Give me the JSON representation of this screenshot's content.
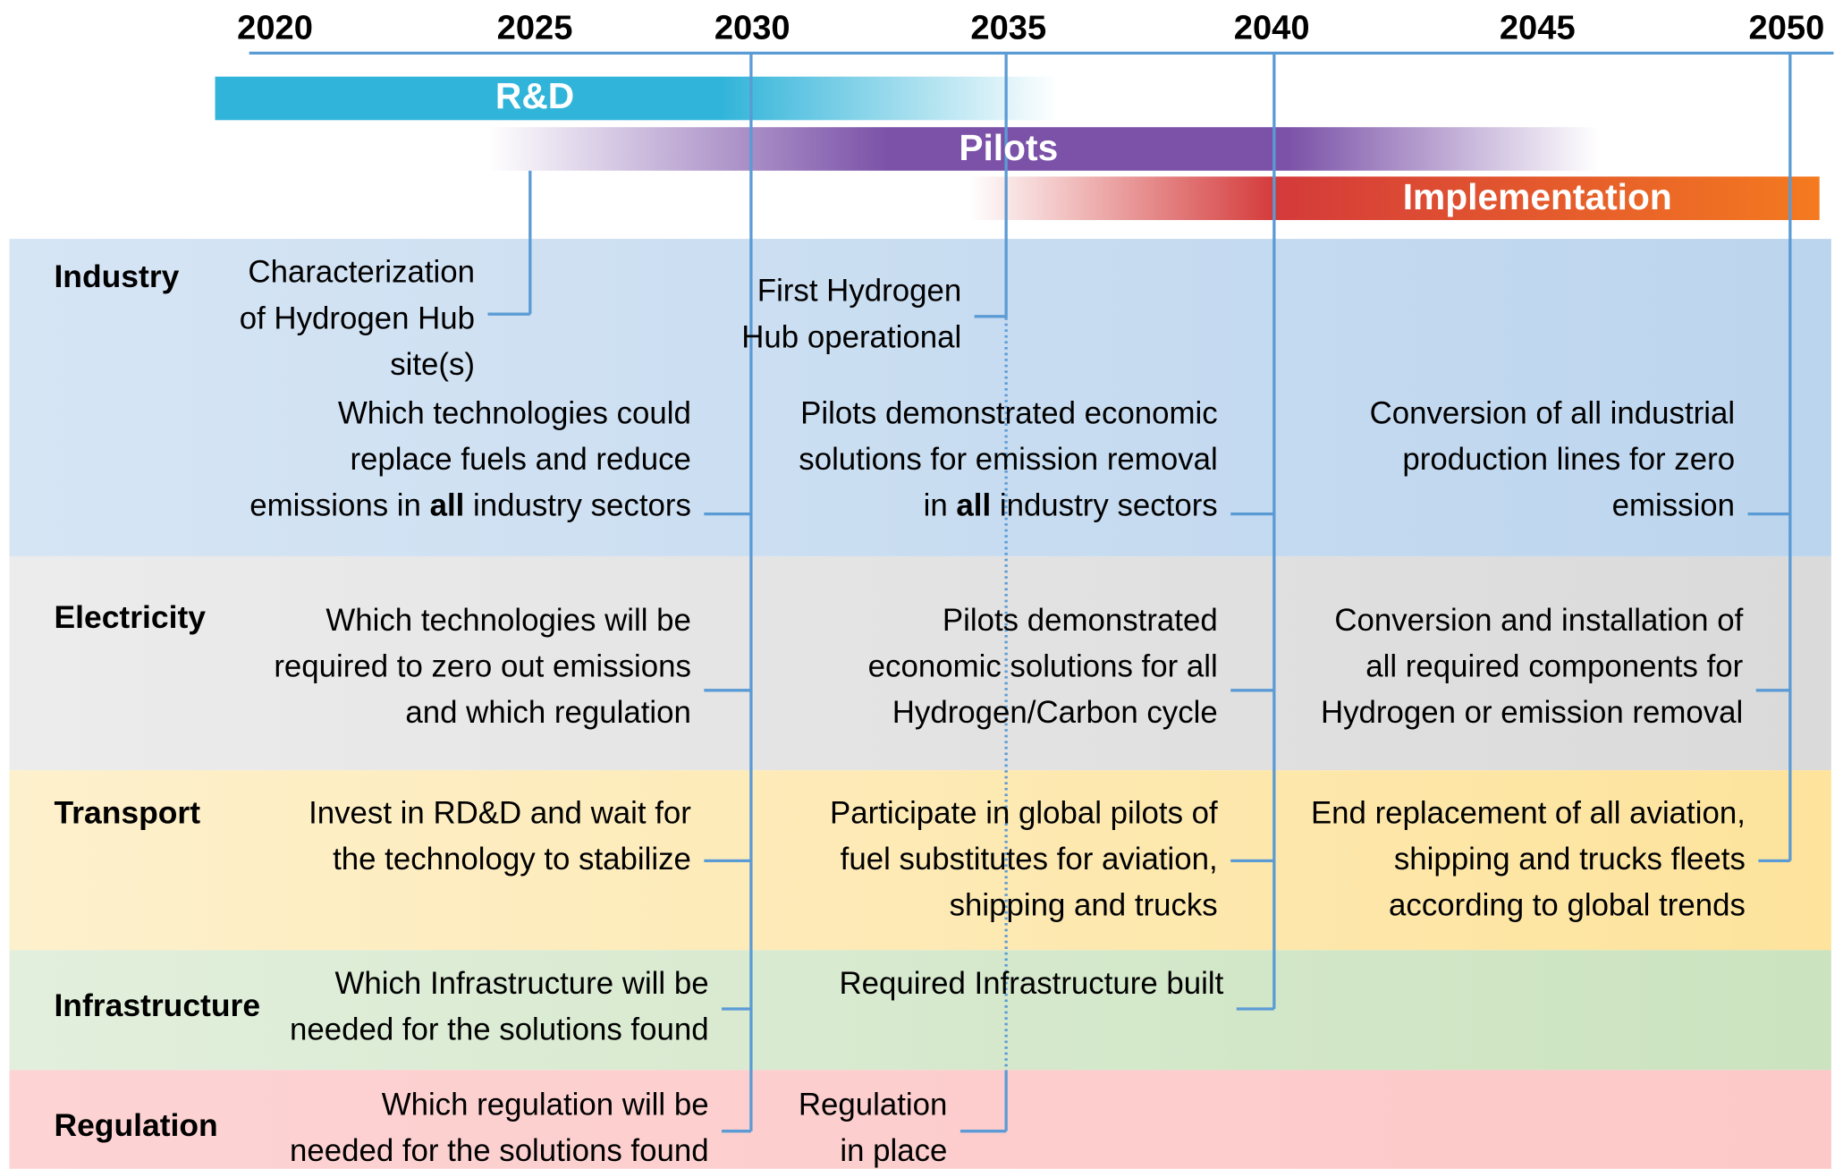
{
  "header": {
    "years": [
      "2020",
      "2025",
      "2030",
      "2035",
      "2040",
      "2045",
      "2050"
    ]
  },
  "phases": [
    {
      "label": "R&D"
    },
    {
      "label": "Pilots"
    },
    {
      "label": "Implementation"
    }
  ],
  "sectors": [
    {
      "name": "Industry",
      "items": [
        {
          "lines": [
            "Characterization",
            "of Hydrogen Hub",
            "site(s)"
          ]
        },
        {
          "lines": [
            "First Hydrogen",
            "Hub operational"
          ]
        },
        {
          "lines": [
            "Which technologies could",
            "replace fuels and reduce",
            [
              {
                "text": "emissions in "
              },
              {
                "text": "all",
                "bold": true
              },
              {
                "text": " industry sectors"
              }
            ]
          ]
        },
        {
          "lines": [
            "Pilots demonstrated economic",
            "solutions for emission removal",
            [
              {
                "text": "in "
              },
              {
                "text": "all",
                "bold": true
              },
              {
                "text": " industry sectors"
              }
            ]
          ]
        },
        {
          "lines": [
            "Conversion of all industrial",
            "production lines for zero",
            "emission"
          ]
        }
      ]
    },
    {
      "name": "Electricity",
      "items": [
        {
          "lines": [
            "Which technologies will be",
            "required to zero out emissions",
            "and which regulation"
          ]
        },
        {
          "lines": [
            "Pilots demonstrated",
            "economic solutions for all",
            "Hydrogen/Carbon cycle"
          ]
        },
        {
          "lines": [
            "Conversion and installation of",
            "all required components for",
            "Hydrogen or emission removal"
          ]
        }
      ]
    },
    {
      "name": "Transport",
      "items": [
        {
          "lines": [
            "Invest in RD&D and wait for",
            "the technology to stabilize"
          ]
        },
        {
          "lines": [
            "Participate in global pilots of",
            "fuel substitutes for aviation,",
            "shipping and trucks"
          ]
        },
        {
          "lines": [
            "End replacement of all aviation,",
            "shipping and trucks fleets",
            "according to global trends"
          ]
        }
      ]
    },
    {
      "name": "Infrastructure",
      "items": [
        {
          "lines": [
            "Which Infrastructure will be",
            "needed for the solutions found"
          ]
        },
        {
          "lines": [
            "Required Infrastructure built"
          ]
        }
      ]
    },
    {
      "name": "Regulation",
      "items": [
        {
          "lines": [
            "Which regulation will be",
            "needed for the solutions found"
          ]
        },
        {
          "lines": [
            "Regulation",
            "in place"
          ]
        }
      ]
    }
  ]
}
